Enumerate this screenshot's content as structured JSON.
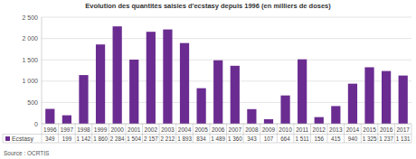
{
  "chart_data": {
    "type": "bar",
    "title": "Evolution des quantités saisies d'ecstasy depuis 1996 (en milliers de doses)",
    "source": "Source : OCRTIS",
    "categories": [
      "1996",
      "1997",
      "1998",
      "1999",
      "2000",
      "2001",
      "2002",
      "2003",
      "2004",
      "2005",
      "2006",
      "2007",
      "2008",
      "2009",
      "2010",
      "2011",
      "2012",
      "2013",
      "2014",
      "2015",
      "2016",
      "2017"
    ],
    "series": [
      {
        "name": "Ecstasy",
        "color": "#6a2c91",
        "values": [
          349,
          199,
          1142,
          1860,
          2284,
          1504,
          2157,
          2212,
          1893,
          834,
          1489,
          1360,
          343,
          107,
          664,
          1511,
          156,
          415,
          940,
          1325,
          1237,
          1131
        ],
        "value_labels": [
          "349",
          "199",
          "1 142",
          "1 860",
          "2 284",
          "1 504",
          "2 157",
          "2 212",
          "1 893",
          "834",
          "1 489",
          "1 360",
          "343",
          "107",
          "664",
          "1 511",
          "156",
          "415",
          "940",
          "1 325",
          "1 237",
          "1 131"
        ]
      }
    ],
    "ylim": [
      0,
      2500
    ],
    "yticks": [
      0,
      500,
      {
        "value": 1000,
        "label": "1 000"
      },
      {
        "value": 1500,
        "label": "1 500"
      },
      {
        "value": 2000,
        "label": "2 000"
      },
      {
        "value": 2500,
        "label": "2 500"
      }
    ],
    "grid": true,
    "data_labels": true,
    "legend": "bottom"
  }
}
